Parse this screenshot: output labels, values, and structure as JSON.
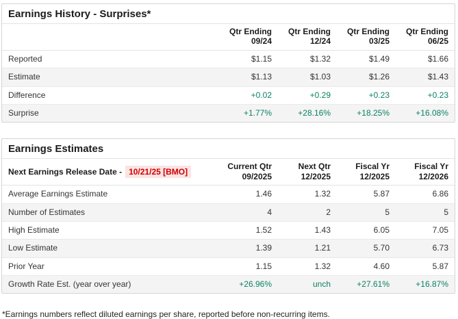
{
  "colors": {
    "positive": "#0b8163",
    "alert-red": "#cc0000",
    "alert-bg": "#fbe3e3"
  },
  "surprises": {
    "title": "Earnings History - Surprises*",
    "columns": [
      {
        "line1": "Qtr Ending",
        "line2": "09/24"
      },
      {
        "line1": "Qtr Ending",
        "line2": "12/24"
      },
      {
        "line1": "Qtr Ending",
        "line2": "03/25"
      },
      {
        "line1": "Qtr Ending",
        "line2": "06/25"
      }
    ],
    "rows": [
      {
        "label": "Reported",
        "values": [
          "$1.15",
          "$1.32",
          "$1.49",
          "$1.66"
        ]
      },
      {
        "label": "Estimate",
        "values": [
          "$1.13",
          "$1.03",
          "$1.26",
          "$1.43"
        ]
      },
      {
        "label": "Difference",
        "values": [
          "+0.02",
          "+0.29",
          "+0.23",
          "+0.23"
        ]
      },
      {
        "label": "Surprise",
        "values": [
          "+1.77%",
          "+28.16%",
          "+18.25%",
          "+16.08%"
        ]
      }
    ]
  },
  "estimates": {
    "title": "Earnings Estimates",
    "release_label": "Next Earnings Release Date -",
    "release_date": "10/21/25 [BMO]",
    "columns": [
      {
        "line1": "Current Qtr",
        "line2": "09/2025"
      },
      {
        "line1": "Next Qtr",
        "line2": "12/2025"
      },
      {
        "line1": "Fiscal Yr",
        "line2": "12/2025"
      },
      {
        "line1": "Fiscal Yr",
        "line2": "12/2026"
      }
    ],
    "rows": [
      {
        "label": "Average Earnings Estimate",
        "values": [
          "1.46",
          "1.32",
          "5.87",
          "6.86"
        ]
      },
      {
        "label": "Number of Estimates",
        "values": [
          "4",
          "2",
          "5",
          "5"
        ]
      },
      {
        "label": "High Estimate",
        "values": [
          "1.52",
          "1.43",
          "6.05",
          "7.05"
        ]
      },
      {
        "label": "Low Estimate",
        "values": [
          "1.39",
          "1.21",
          "5.70",
          "6.73"
        ]
      },
      {
        "label": "Prior Year",
        "values": [
          "1.15",
          "1.32",
          "4.60",
          "5.87"
        ]
      },
      {
        "label": "Growth Rate Est. (year over year)",
        "values": [
          "+26.96%",
          "unch",
          "+27.61%",
          "+16.87%"
        ]
      }
    ]
  },
  "footnote": "*Earnings numbers reflect diluted earnings per share, reported before non-recurring items."
}
